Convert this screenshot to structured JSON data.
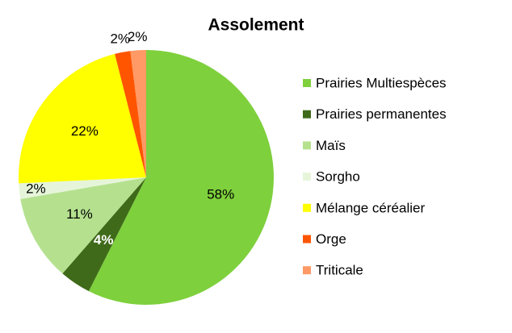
{
  "chart_data": {
    "type": "pie",
    "title": "Assolement",
    "categories": [
      "Prairies Multiespèces",
      "Prairies permanentes",
      "Maïs",
      "Sorgho",
      "Mélange céréalier",
      "Orge",
      "Triticale"
    ],
    "values": [
      58,
      4,
      11,
      2,
      22,
      2,
      2
    ],
    "value_labels": [
      "58%",
      "4%",
      "11%",
      "2%",
      "22%",
      "2%",
      "2%"
    ],
    "colors": [
      "#7ed03c",
      "#3f6a19",
      "#b5e18f",
      "#e6f5d9",
      "#ffff00",
      "#ff5500",
      "#ff9966"
    ],
    "legend": "right"
  }
}
